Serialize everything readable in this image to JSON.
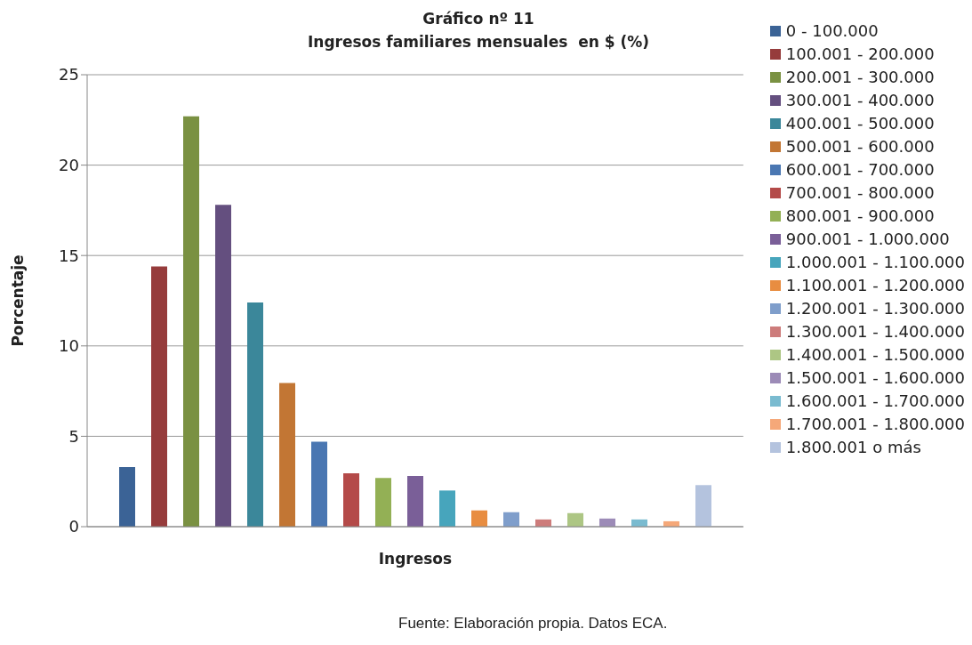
{
  "chart_data": {
    "type": "bar",
    "title": "Gráfico nº 11\nIngresos familiares mensuales  en $ (%)",
    "xlabel": "Ingresos",
    "ylabel": "Porcentaje",
    "annotations": [
      "Fuente: Elaboración propia. Datos ECA."
    ],
    "categories": [
      null
    ],
    "ylim": [
      0,
      25
    ],
    "yticks": [
      0,
      5,
      10,
      15,
      20,
      25
    ],
    "grid": "y",
    "legend": "right",
    "series": [
      {
        "name": "0 - 100.000",
        "color": "#3b6396",
        "values": [
          3.3
        ]
      },
      {
        "name": "100.001 - 200.000",
        "color": "#963c3c",
        "values": [
          14.4
        ]
      },
      {
        "name": "200.001 - 300.000",
        "color": "#7a9142",
        "values": [
          22.7
        ]
      },
      {
        "name": "300.001 - 400.000",
        "color": "#644f7f",
        "values": [
          17.8
        ]
      },
      {
        "name": "400.001 - 500.000",
        "color": "#3b879a",
        "values": [
          12.4
        ]
      },
      {
        "name": "500.001 - 600.000",
        "color": "#c27634",
        "values": [
          7.95
        ]
      },
      {
        "name": "600.001 - 700.000",
        "color": "#4a77b2",
        "values": [
          4.7
        ]
      },
      {
        "name": "700.001 - 800.000",
        "color": "#b44a49",
        "values": [
          2.95
        ]
      },
      {
        "name": "800.001 - 900.000",
        "color": "#93b055",
        "values": [
          2.7
        ]
      },
      {
        "name": "900.001 - 1.000.000",
        "color": "#7a5f98",
        "values": [
          2.8
        ]
      },
      {
        "name": "1.000.001 - 1.100.000",
        "color": "#47a5bc",
        "values": [
          2.0
        ]
      },
      {
        "name": "1.100.001 - 1.200.000",
        "color": "#e88d41",
        "values": [
          0.9
        ]
      },
      {
        "name": "1.200.001 - 1.300.000",
        "color": "#7f9ecb",
        "values": [
          0.8
        ]
      },
      {
        "name": "1.300.001 - 1.400.000",
        "color": "#cd7c7b",
        "values": [
          0.4
        ]
      },
      {
        "name": "1.400.001 - 1.500.000",
        "color": "#adc684",
        "values": [
          0.75
        ]
      },
      {
        "name": "1.500.001 - 1.600.000",
        "color": "#9c8bb7",
        "values": [
          0.45
        ]
      },
      {
        "name": "1.600.001 - 1.700.000",
        "color": "#7abbd0",
        "values": [
          0.4
        ]
      },
      {
        "name": "1.700.001 - 1.800.000",
        "color": "#f5a879",
        "values": [
          0.3
        ]
      },
      {
        "name": "1.800.001 o más",
        "color": "#b4c3de",
        "values": [
          2.3
        ]
      }
    ]
  }
}
